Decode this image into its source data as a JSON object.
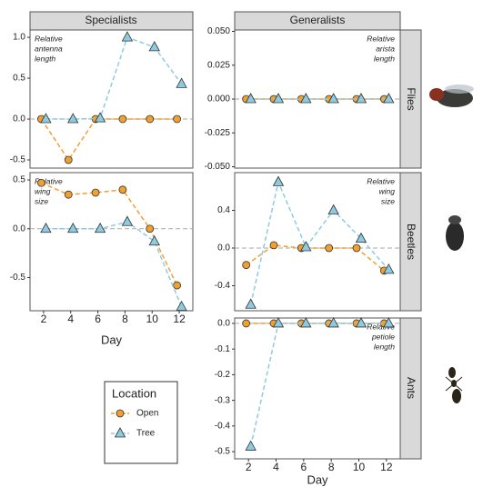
{
  "facets": {
    "columns": [
      "Specialists",
      "Generalists"
    ],
    "rows": [
      "Flies",
      "Beetles",
      "Ants"
    ]
  },
  "legend": {
    "title": "Location"
  },
  "chart_data": [
    {
      "type": "line",
      "annotation": [
        "Relative",
        "antenna",
        "length"
      ],
      "x": [
        2,
        4,
        6,
        8,
        10,
        12
      ],
      "xlim": [
        1,
        13
      ],
      "ylim": [
        -0.6,
        1.09
      ],
      "yticks": [
        -0.5,
        {
          "value": 0,
          "label": "0.0"
        },
        0.5,
        {
          "value": 1,
          "label": "1.0"
        }
      ],
      "hline": 0,
      "series": [
        {
          "name": "Open",
          "color": "#f0a030",
          "marker": "circle",
          "values": [
            0,
            -0.5,
            0,
            0,
            0,
            0
          ]
        },
        {
          "name": "Tree",
          "color": "#8fcbe0",
          "marker": "triangle",
          "values": [
            0,
            0,
            0.01,
            1.0,
            0.88,
            0.43
          ]
        }
      ]
    },
    {
      "type": "line",
      "annotation": [
        "Relative",
        "arista",
        "length"
      ],
      "x": [
        2,
        4,
        6,
        8,
        10,
        12
      ],
      "xlim": [
        1,
        13
      ],
      "ylim": [
        -0.051,
        0.051
      ],
      "yticks": [
        {
          "value": -0.05,
          "label": "-0.050"
        },
        {
          "value": -0.025,
          "label": "-0.025"
        },
        {
          "value": 0,
          "label": "0.000"
        },
        {
          "value": 0.025,
          "label": "0.025"
        },
        {
          "value": 0.05,
          "label": "0.050"
        }
      ],
      "hline": 0,
      "series": [
        {
          "name": "Open",
          "color": "#f0a030",
          "marker": "circle",
          "values": [
            0,
            0,
            0,
            0,
            0,
            0
          ]
        },
        {
          "name": "Tree",
          "color": "#8fcbe0",
          "marker": "triangle",
          "values": [
            0,
            0,
            0,
            0,
            0,
            0
          ]
        }
      ]
    },
    {
      "type": "line",
      "annotation": [
        "Relative",
        "wing",
        "size"
      ],
      "x": [
        2,
        4,
        6,
        8,
        10,
        12
      ],
      "xlim": [
        1,
        13
      ],
      "ylim": [
        -0.84,
        0.575
      ],
      "xticks": [
        2,
        4,
        6,
        8,
        10,
        12
      ],
      "xlabel": "Day",
      "yticks": [
        -0.5,
        {
          "value": 0,
          "label": "0.0"
        },
        0.5
      ],
      "hline": 0,
      "series": [
        {
          "name": "Open",
          "color": "#f0a030",
          "marker": "circle",
          "values": [
            0.47,
            0.35,
            0.37,
            0.4,
            0,
            -0.58
          ]
        },
        {
          "name": "Tree",
          "color": "#8fcbe0",
          "marker": "triangle",
          "values": [
            0,
            0,
            0,
            0.07,
            -0.13,
            -0.8
          ]
        }
      ]
    },
    {
      "type": "line",
      "annotation": [
        "Relative",
        "wing",
        "size"
      ],
      "x": [
        2,
        4,
        6,
        8,
        10,
        12
      ],
      "xlim": [
        1,
        13
      ],
      "ylim": [
        -0.665,
        0.8
      ],
      "yticks": [
        -0.4,
        {
          "value": 0,
          "label": "0.0"
        },
        0.4
      ],
      "hline": 0,
      "series": [
        {
          "name": "Open",
          "color": "#f0a030",
          "marker": "circle",
          "values": [
            -0.18,
            0.03,
            0,
            0,
            0,
            -0.24
          ]
        },
        {
          "name": "Tree",
          "color": "#8fcbe0",
          "marker": "triangle",
          "values": [
            -0.6,
            0.7,
            0.01,
            0.4,
            0.1,
            -0.23
          ]
        }
      ]
    },
    {
      "type": "line",
      "annotation": [
        "Relative",
        "petiole",
        "length"
      ],
      "x": [
        2,
        4,
        6,
        8,
        10,
        12
      ],
      "xlim": [
        1,
        13
      ],
      "ylim": [
        -0.528,
        0.021
      ],
      "xticks": [
        2,
        4,
        6,
        8,
        10,
        12
      ],
      "xlabel": "Day",
      "yticks": [
        -0.5,
        -0.4,
        -0.3,
        -0.2,
        -0.1,
        {
          "value": 0,
          "label": "0.0"
        }
      ],
      "hline": 0,
      "series": [
        {
          "name": "Open",
          "color": "#f0a030",
          "marker": "circle",
          "values": [
            0,
            0,
            0,
            0,
            0,
            0
          ]
        },
        {
          "name": "Tree",
          "color": "#8fcbe0",
          "marker": "triangle",
          "values": [
            -0.48,
            0,
            0,
            0,
            0,
            0
          ]
        }
      ]
    }
  ]
}
